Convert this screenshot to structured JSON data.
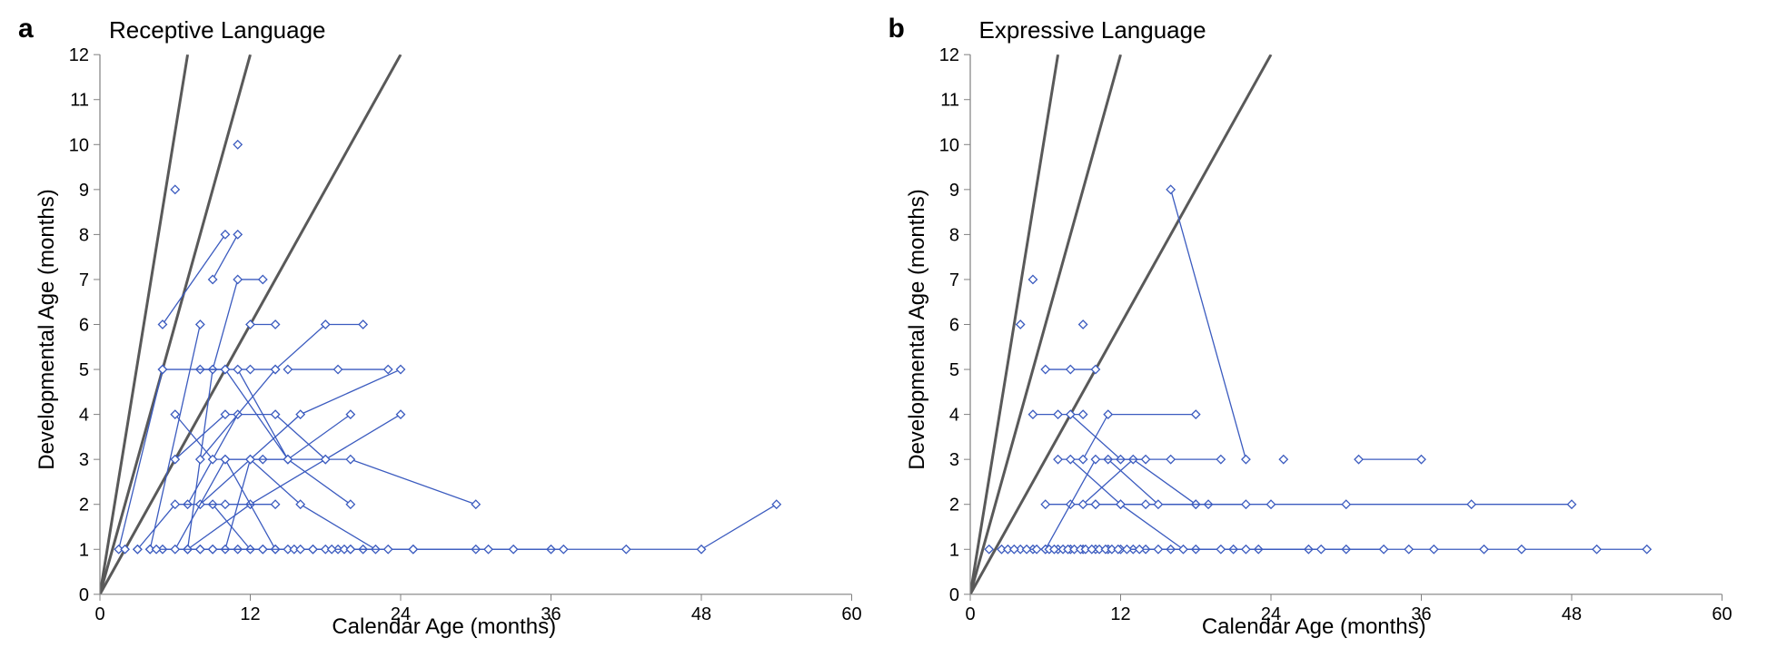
{
  "figure_width": 1945,
  "figure_height": 725,
  "background_color": "#ffffff",
  "line_color": "#3b5bbf",
  "marker_edge_color": "#3b5bbf",
  "marker_fill_color": "#ffffff",
  "marker_size": 4.5,
  "axis_color": "#808080",
  "ref_line_color": "#595959",
  "tick_font_size": 20,
  "axis_title_font_size": 24,
  "panel_label_font_size": 30,
  "panel_title_font_size": 26,
  "panels": [
    {
      "id": "a",
      "label": "a",
      "title": "Receptive Language",
      "xlabel": "Calendar Age (months)",
      "ylabel": "Developmental Age (months)",
      "xlim": [
        0,
        60
      ],
      "ylim": [
        0,
        12
      ],
      "xticks": [
        0,
        12,
        24,
        36,
        48,
        60
      ],
      "yticks": [
        0,
        1,
        2,
        3,
        4,
        5,
        6,
        7,
        8,
        9,
        10,
        11,
        12
      ],
      "xtick_labels": [
        "0",
        "12",
        "24",
        "36",
        "48",
        "60"
      ],
      "ytick_labels": [
        "0",
        "1",
        "2",
        "3",
        "4",
        "5",
        "6",
        "7",
        "8",
        "9",
        "10",
        "11",
        "12"
      ],
      "ref_lines": [
        {
          "from": [
            0,
            0
          ],
          "to": [
            7.0,
            12
          ]
        },
        {
          "from": [
            0,
            0
          ],
          "to": [
            12,
            12
          ]
        },
        {
          "from": [
            0,
            0
          ],
          "to": [
            24,
            12
          ]
        }
      ],
      "series": [
        [
          [
            1.5,
            1
          ],
          [
            5,
            5
          ]
        ],
        [
          [
            4,
            1
          ],
          [
            8,
            6
          ]
        ],
        [
          [
            5,
            6
          ],
          [
            10,
            8
          ]
        ],
        [
          [
            6,
            9
          ]
        ],
        [
          [
            7,
            1
          ],
          [
            9,
            5
          ],
          [
            11,
            7
          ],
          [
            13,
            7
          ]
        ],
        [
          [
            8,
            5
          ],
          [
            10,
            5
          ],
          [
            12,
            5
          ],
          [
            14,
            5
          ]
        ],
        [
          [
            9,
            7
          ],
          [
            11,
            8
          ]
        ],
        [
          [
            8,
            1
          ],
          [
            10,
            1
          ],
          [
            12,
            3
          ],
          [
            16,
            4
          ],
          [
            24,
            5
          ]
        ],
        [
          [
            6,
            3
          ],
          [
            10,
            4
          ],
          [
            14,
            4
          ],
          [
            18,
            3
          ],
          [
            24,
            4
          ]
        ],
        [
          [
            7,
            2
          ],
          [
            11,
            4
          ]
        ],
        [
          [
            12,
            6
          ],
          [
            14,
            6
          ]
        ],
        [
          [
            5,
            5
          ],
          [
            10,
            5
          ],
          [
            15,
            3
          ]
        ],
        [
          [
            11,
            10
          ]
        ],
        [
          [
            6,
            4
          ],
          [
            9,
            3
          ],
          [
            13,
            3
          ],
          [
            20,
            3
          ],
          [
            30,
            2
          ]
        ],
        [
          [
            7,
            1
          ],
          [
            12,
            2
          ],
          [
            18,
            3
          ]
        ],
        [
          [
            8,
            3
          ],
          [
            14,
            5
          ],
          [
            18,
            6
          ],
          [
            21,
            6
          ]
        ],
        [
          [
            9,
            2
          ],
          [
            12,
            1
          ],
          [
            20,
            1
          ]
        ],
        [
          [
            10,
            3
          ],
          [
            15,
            3
          ],
          [
            20,
            4
          ]
        ],
        [
          [
            5,
            1
          ],
          [
            7,
            1
          ],
          [
            9,
            1
          ],
          [
            11,
            1
          ],
          [
            14,
            1
          ],
          [
            17,
            1
          ],
          [
            21,
            1
          ],
          [
            25,
            1
          ],
          [
            30,
            1
          ],
          [
            36,
            1
          ],
          [
            42,
            1
          ],
          [
            48,
            1
          ],
          [
            54,
            2
          ]
        ],
        [
          [
            3,
            1
          ],
          [
            6,
            2
          ],
          [
            10,
            2
          ],
          [
            14,
            2
          ]
        ],
        [
          [
            4,
            1
          ],
          [
            8,
            1
          ],
          [
            13,
            1
          ],
          [
            19,
            1
          ],
          [
            25,
            1
          ],
          [
            31,
            1
          ],
          [
            37,
            1
          ]
        ],
        [
          [
            8,
            2
          ],
          [
            12,
            3
          ],
          [
            16,
            2
          ],
          [
            22,
            1
          ]
        ],
        [
          [
            6,
            1
          ],
          [
            10,
            3
          ],
          [
            14,
            1
          ]
        ],
        [
          [
            11,
            5
          ],
          [
            15,
            3
          ],
          [
            20,
            2
          ]
        ],
        [
          [
            9,
            1
          ],
          [
            15,
            1
          ],
          [
            23,
            1
          ]
        ],
        [
          [
            15,
            5
          ],
          [
            19,
            5
          ],
          [
            23,
            5
          ]
        ]
      ],
      "loose_points": [
        [
          2,
          1
        ],
        [
          3,
          1
        ],
        [
          4.5,
          1
        ],
        [
          13,
          1
        ],
        [
          15.5,
          1
        ],
        [
          16,
          1
        ],
        [
          17,
          1
        ],
        [
          18,
          1
        ],
        [
          18.5,
          1
        ],
        [
          19.5,
          1
        ],
        [
          20,
          1
        ],
        [
          33,
          1
        ]
      ]
    },
    {
      "id": "b",
      "label": "b",
      "title": "Expressive Language",
      "xlabel": "Calendar Age (months)",
      "ylabel": "Developmental Age (months)",
      "xlim": [
        0,
        60
      ],
      "ylim": [
        0,
        12
      ],
      "xticks": [
        0,
        12,
        24,
        36,
        48,
        60
      ],
      "yticks": [
        0,
        1,
        2,
        3,
        4,
        5,
        6,
        7,
        8,
        9,
        10,
        11,
        12
      ],
      "xtick_labels": [
        "0",
        "12",
        "24",
        "36",
        "48",
        "60"
      ],
      "ytick_labels": [
        "0",
        "1",
        "2",
        "3",
        "4",
        "5",
        "6",
        "7",
        "8",
        "9",
        "10",
        "11",
        "12"
      ],
      "ref_lines": [
        {
          "from": [
            0,
            0
          ],
          "to": [
            7.0,
            12
          ]
        },
        {
          "from": [
            0,
            0
          ],
          "to": [
            12,
            12
          ]
        },
        {
          "from": [
            0,
            0
          ],
          "to": [
            24,
            12
          ]
        }
      ],
      "series": [
        [
          [
            4,
            6
          ]
        ],
        [
          [
            5,
            7
          ]
        ],
        [
          [
            6,
            5
          ],
          [
            8,
            5
          ],
          [
            10,
            5
          ]
        ],
        [
          [
            5,
            4
          ],
          [
            7,
            4
          ],
          [
            9,
            4
          ]
        ],
        [
          [
            7,
            3
          ],
          [
            9,
            3
          ],
          [
            11,
            4
          ],
          [
            18,
            4
          ]
        ],
        [
          [
            9,
            6
          ]
        ],
        [
          [
            6,
            2
          ],
          [
            8,
            2
          ],
          [
            10,
            2
          ],
          [
            12,
            2
          ],
          [
            18,
            2
          ],
          [
            24,
            2
          ],
          [
            30,
            2
          ],
          [
            40,
            2
          ],
          [
            48,
            2
          ]
        ],
        [
          [
            16,
            9
          ],
          [
            22,
            3
          ]
        ],
        [
          [
            8,
            4
          ],
          [
            12,
            3
          ],
          [
            16,
            3
          ],
          [
            20,
            3
          ]
        ],
        [
          [
            10,
            2
          ],
          [
            14,
            2
          ],
          [
            19,
            2
          ]
        ],
        [
          [
            5,
            1
          ],
          [
            9,
            1
          ],
          [
            13,
            1
          ],
          [
            18,
            1
          ],
          [
            23,
            1
          ],
          [
            30,
            1
          ],
          [
            37,
            1
          ],
          [
            44,
            1
          ],
          [
            50,
            1
          ],
          [
            54,
            1
          ]
        ],
        [
          [
            4,
            1
          ],
          [
            6,
            1
          ],
          [
            8,
            1
          ],
          [
            10,
            1
          ],
          [
            12,
            1
          ],
          [
            14,
            1
          ],
          [
            16,
            1
          ],
          [
            21,
            1
          ]
        ],
        [
          [
            7,
            1
          ],
          [
            11,
            1
          ],
          [
            15,
            1
          ],
          [
            20,
            1
          ],
          [
            27,
            1
          ],
          [
            33,
            1
          ]
        ],
        [
          [
            8,
            3
          ],
          [
            12,
            2
          ],
          [
            17,
            1
          ]
        ],
        [
          [
            9,
            2
          ],
          [
            13,
            3
          ],
          [
            18,
            2
          ]
        ],
        [
          [
            11,
            3
          ],
          [
            15,
            2
          ],
          [
            22,
            2
          ]
        ],
        [
          [
            6,
            1
          ],
          [
            10,
            3
          ],
          [
            14,
            3
          ]
        ],
        [
          [
            25,
            3
          ]
        ],
        [
          [
            31,
            3
          ],
          [
            36,
            3
          ]
        ],
        [
          [
            22,
            1
          ],
          [
            28,
            1
          ]
        ]
      ],
      "loose_points": [
        [
          1.5,
          1
        ],
        [
          2.5,
          1
        ],
        [
          3,
          1
        ],
        [
          3.5,
          1
        ],
        [
          4.5,
          1
        ],
        [
          5.3,
          1
        ],
        [
          6.3,
          1
        ],
        [
          6.7,
          1
        ],
        [
          7.4,
          1
        ],
        [
          7.8,
          1
        ],
        [
          8.3,
          1
        ],
        [
          8.8,
          1
        ],
        [
          9.2,
          1
        ],
        [
          9.7,
          1
        ],
        [
          10.3,
          1
        ],
        [
          10.8,
          1
        ],
        [
          11.3,
          1
        ],
        [
          11.8,
          1
        ],
        [
          12.5,
          1
        ],
        [
          13.5,
          1
        ],
        [
          35,
          1
        ],
        [
          41,
          1
        ]
      ]
    }
  ]
}
